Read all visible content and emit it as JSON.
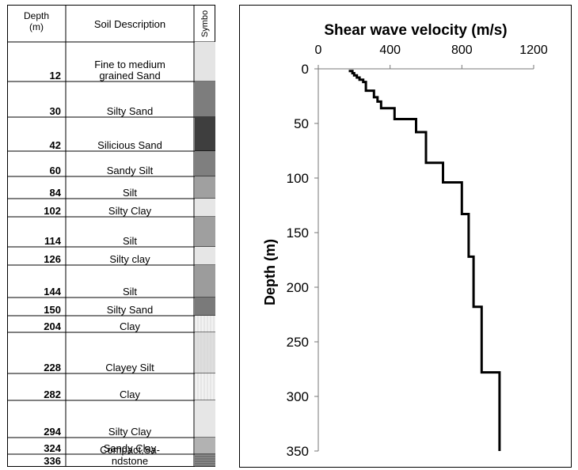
{
  "borelog": {
    "headers": {
      "depth": "Depth (m)",
      "description": "Soil Description",
      "symbol": "Symbo"
    },
    "layers": [
      {
        "depth": "12",
        "description": "Fine to medium grained Sand",
        "fill": "#e4e4e4",
        "pattern": "none"
      },
      {
        "depth": "30",
        "description": "Silty Sand",
        "fill": "#7d7d7d",
        "pattern": "none"
      },
      {
        "depth": "42",
        "description": "Silicious Sand",
        "fill": "#3e3e3e",
        "pattern": "none"
      },
      {
        "depth": "60",
        "description": "Sandy Silt",
        "fill": "#7f7f7f",
        "pattern": "none"
      },
      {
        "depth": "84",
        "description": "Silt",
        "fill": "#a0a0a0",
        "pattern": "none"
      },
      {
        "depth": "102",
        "description": "Silty Clay",
        "fill": "#e6e6e6",
        "pattern": "none"
      },
      {
        "depth": "114",
        "description": "Silt",
        "fill": "#9f9f9f",
        "pattern": "none"
      },
      {
        "depth": "126",
        "description": "Silty clay",
        "fill": "#e6e6e6",
        "pattern": "none"
      },
      {
        "depth": "144",
        "description": "Silt",
        "fill": "#9c9c9c",
        "pattern": "none"
      },
      {
        "depth": "150",
        "description": "Silty Sand",
        "fill": "#7a7a7a",
        "pattern": "none"
      },
      {
        "depth": "204",
        "description": "Clay",
        "fill": "#f2f2f2",
        "pattern": "vlines"
      },
      {
        "depth": "228",
        "description": "Clayey Silt",
        "fill": "#dedede",
        "pattern": "vlines"
      },
      {
        "depth": "282",
        "description": "Clay",
        "fill": "#f2f2f2",
        "pattern": "vlines"
      },
      {
        "depth": "294",
        "description": "Silty Clay",
        "fill": "#e6e6e6",
        "pattern": "none"
      },
      {
        "depth": "324",
        "description": "Sandy  Clay",
        "fill": "#b2b2b2",
        "pattern": "none"
      },
      {
        "depth": "336",
        "description": "Compact,Sa-ndstone",
        "fill": "#8c8c8c",
        "pattern": "hlines"
      }
    ]
  },
  "chart_data": {
    "type": "line",
    "title": "Shear wave velocity (m/s)",
    "xlabel": "",
    "ylabel": "Depth (m)",
    "xlim": [
      0,
      1200
    ],
    "ylim": [
      0,
      350
    ],
    "y_inverted": true,
    "x_axis_position": "top",
    "xticks": [
      0,
      400,
      800,
      1200
    ],
    "yticks": [
      0,
      50,
      100,
      150,
      200,
      250,
      300,
      350
    ],
    "grid": false,
    "series": [
      {
        "color": "#000000",
        "points": [
          [
            170,
            2
          ],
          [
            190,
            2
          ],
          [
            190,
            4
          ],
          [
            200,
            4
          ],
          [
            200,
            6
          ],
          [
            215,
            6
          ],
          [
            215,
            8
          ],
          [
            230,
            8
          ],
          [
            230,
            10
          ],
          [
            250,
            10
          ],
          [
            250,
            12
          ],
          [
            265,
            12
          ],
          [
            265,
            20
          ],
          [
            310,
            20
          ],
          [
            310,
            26
          ],
          [
            330,
            26
          ],
          [
            330,
            30
          ],
          [
            350,
            30
          ],
          [
            350,
            36
          ],
          [
            425,
            36
          ],
          [
            425,
            46
          ],
          [
            545,
            46
          ],
          [
            545,
            58
          ],
          [
            600,
            58
          ],
          [
            600,
            86
          ],
          [
            695,
            86
          ],
          [
            695,
            104
          ],
          [
            800,
            104
          ],
          [
            800,
            133
          ],
          [
            838,
            133
          ],
          [
            838,
            172
          ],
          [
            865,
            172
          ],
          [
            865,
            218
          ],
          [
            910,
            218
          ],
          [
            910,
            278
          ],
          [
            1010,
            278
          ],
          [
            1010,
            350
          ]
        ]
      }
    ]
  }
}
